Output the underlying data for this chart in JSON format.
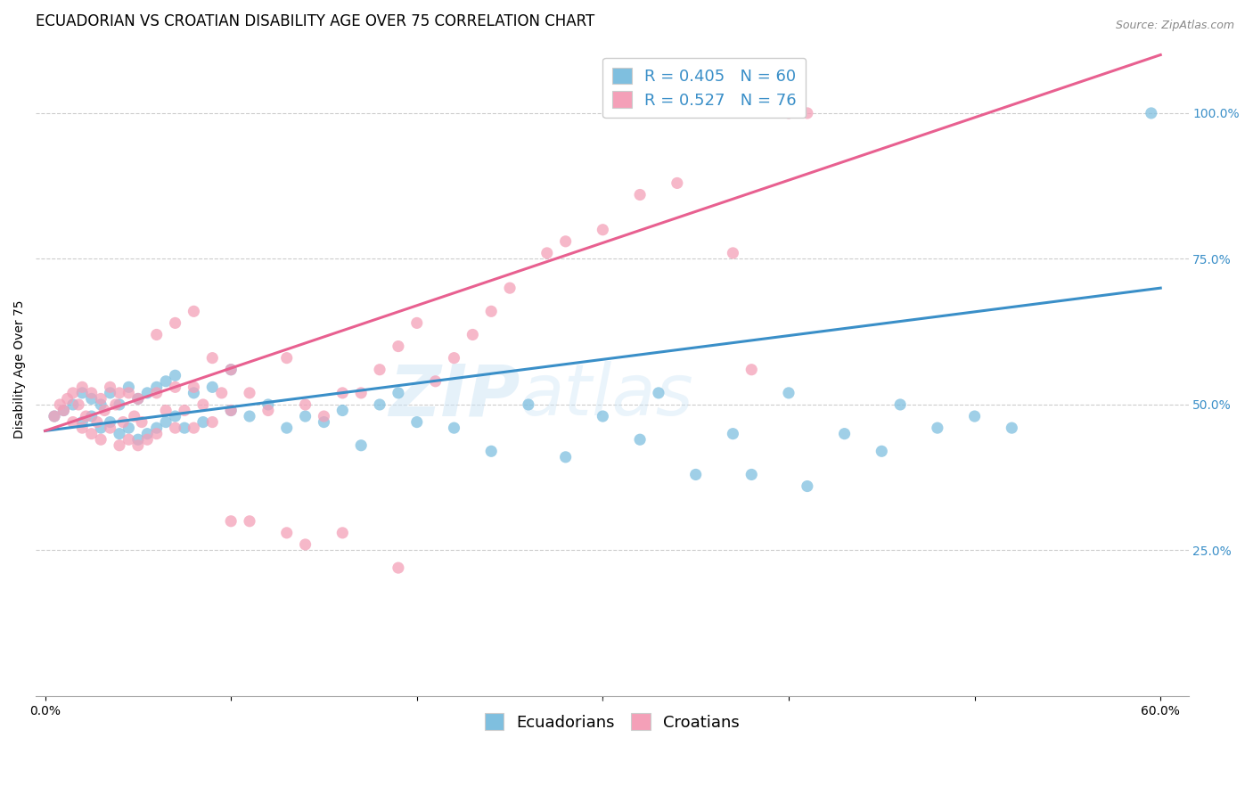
{
  "title": "ECUADORIAN VS CROATIAN DISABILITY AGE OVER 75 CORRELATION CHART",
  "source": "Source: ZipAtlas.com",
  "ylabel": "Disability Age Over 75",
  "blue_color": "#7fbfdf",
  "pink_color": "#f4a0b8",
  "blue_line_color": "#3a8fc8",
  "pink_line_color": "#e86090",
  "legend_text_color": "#3a8fc8",
  "watermark": "ZIPatlas",
  "grid_color": "#cccccc",
  "background_color": "#ffffff",
  "title_fontsize": 12,
  "axis_label_fontsize": 10,
  "tick_fontsize": 10,
  "legend_fontsize": 13,
  "blue_trendline": [
    0.0,
    0.6,
    0.455,
    0.7
  ],
  "pink_trendline": [
    0.0,
    0.6,
    0.455,
    1.1
  ],
  "ylim": [
    0.0,
    1.12
  ],
  "xlim": [
    -0.005,
    0.615
  ],
  "y_ticks": [
    0.25,
    0.5,
    0.75,
    1.0
  ],
  "y_tick_labels": [
    "25.0%",
    "50.0%",
    "75.0%",
    "100.0%"
  ],
  "x_ticks": [
    0.0,
    0.1,
    0.2,
    0.3,
    0.4,
    0.5,
    0.6
  ],
  "x_tick_labels": [
    "0.0%",
    "",
    "",
    "",
    "",
    "",
    "60.0%"
  ],
  "blue_x": [
    0.005,
    0.01,
    0.015,
    0.02,
    0.02,
    0.025,
    0.025,
    0.03,
    0.03,
    0.035,
    0.035,
    0.04,
    0.04,
    0.045,
    0.045,
    0.05,
    0.05,
    0.055,
    0.055,
    0.06,
    0.06,
    0.065,
    0.065,
    0.07,
    0.07,
    0.075,
    0.08,
    0.085,
    0.09,
    0.1,
    0.1,
    0.11,
    0.12,
    0.13,
    0.14,
    0.15,
    0.16,
    0.17,
    0.18,
    0.19,
    0.2,
    0.22,
    0.24,
    0.26,
    0.28,
    0.3,
    0.32,
    0.33,
    0.35,
    0.37,
    0.38,
    0.4,
    0.41,
    0.43,
    0.45,
    0.46,
    0.48,
    0.5,
    0.52,
    0.595
  ],
  "blue_y": [
    0.48,
    0.49,
    0.5,
    0.47,
    0.52,
    0.48,
    0.51,
    0.46,
    0.5,
    0.47,
    0.52,
    0.45,
    0.5,
    0.46,
    0.53,
    0.44,
    0.51,
    0.45,
    0.52,
    0.46,
    0.53,
    0.47,
    0.54,
    0.48,
    0.55,
    0.46,
    0.52,
    0.47,
    0.53,
    0.49,
    0.56,
    0.48,
    0.5,
    0.46,
    0.48,
    0.47,
    0.49,
    0.43,
    0.5,
    0.52,
    0.47,
    0.46,
    0.42,
    0.5,
    0.41,
    0.48,
    0.44,
    0.52,
    0.38,
    0.45,
    0.38,
    0.52,
    0.36,
    0.45,
    0.42,
    0.5,
    0.46,
    0.48,
    0.46,
    1.0
  ],
  "pink_x": [
    0.005,
    0.008,
    0.01,
    0.012,
    0.015,
    0.015,
    0.018,
    0.02,
    0.02,
    0.022,
    0.025,
    0.025,
    0.028,
    0.03,
    0.03,
    0.032,
    0.035,
    0.035,
    0.038,
    0.04,
    0.04,
    0.042,
    0.045,
    0.045,
    0.048,
    0.05,
    0.05,
    0.052,
    0.055,
    0.06,
    0.06,
    0.065,
    0.07,
    0.07,
    0.075,
    0.08,
    0.08,
    0.085,
    0.09,
    0.095,
    0.1,
    0.1,
    0.11,
    0.12,
    0.13,
    0.14,
    0.15,
    0.16,
    0.17,
    0.18,
    0.19,
    0.2,
    0.21,
    0.22,
    0.23,
    0.24,
    0.25,
    0.27,
    0.28,
    0.3,
    0.32,
    0.34,
    0.37,
    0.38,
    0.4,
    0.41,
    0.06,
    0.07,
    0.08,
    0.09,
    0.1,
    0.11,
    0.13,
    0.14,
    0.16,
    0.19
  ],
  "pink_y": [
    0.48,
    0.5,
    0.49,
    0.51,
    0.47,
    0.52,
    0.5,
    0.46,
    0.53,
    0.48,
    0.45,
    0.52,
    0.47,
    0.44,
    0.51,
    0.49,
    0.46,
    0.53,
    0.5,
    0.43,
    0.52,
    0.47,
    0.44,
    0.52,
    0.48,
    0.43,
    0.51,
    0.47,
    0.44,
    0.45,
    0.52,
    0.49,
    0.46,
    0.53,
    0.49,
    0.46,
    0.53,
    0.5,
    0.47,
    0.52,
    0.49,
    0.56,
    0.52,
    0.49,
    0.58,
    0.5,
    0.48,
    0.52,
    0.52,
    0.56,
    0.6,
    0.64,
    0.54,
    0.58,
    0.62,
    0.66,
    0.7,
    0.76,
    0.78,
    0.8,
    0.86,
    0.88,
    0.76,
    0.56,
    1.0,
    1.0,
    0.62,
    0.64,
    0.66,
    0.58,
    0.3,
    0.3,
    0.28,
    0.26,
    0.28,
    0.22
  ]
}
